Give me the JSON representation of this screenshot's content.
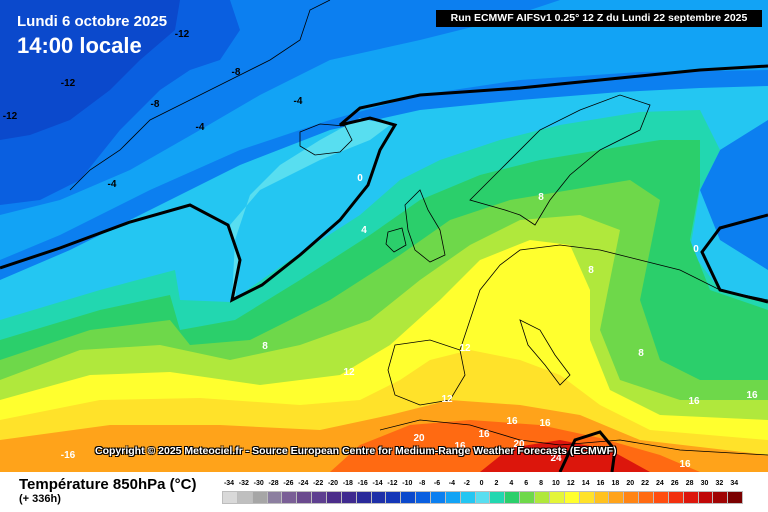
{
  "header": {
    "date": "Lundi 6 octobre 2025",
    "time": "14:00 locale",
    "run_info": "Run ECMWF AIFSv1 0.25° 12 Z du Lundi 22 septembre 2025"
  },
  "copyright": "Copyright © 2025 Meteociel.fr - Source European Centre for Medium-Range Weather Forecasts (ECMWF)",
  "legend": {
    "title": "Température 850hPa (°C)",
    "subtitle": "(+ 336h)",
    "steps": [
      {
        "value": "-34",
        "color": "#d9d9d9"
      },
      {
        "value": "-32",
        "color": "#bfbfbf"
      },
      {
        "value": "-30",
        "color": "#a6a6a6"
      },
      {
        "value": "-28",
        "color": "#8c7fa0"
      },
      {
        "value": "-26",
        "color": "#7a5f96"
      },
      {
        "value": "-24",
        "color": "#6a4a8e"
      },
      {
        "value": "-22",
        "color": "#5e3f90"
      },
      {
        "value": "-20",
        "color": "#4b2d8a"
      },
      {
        "value": "-18",
        "color": "#3f2a8f"
      },
      {
        "value": "-16",
        "color": "#2a2a9a"
      },
      {
        "value": "-14",
        "color": "#1e2fa8"
      },
      {
        "value": "-12",
        "color": "#1436b8"
      },
      {
        "value": "-10",
        "color": "#0b49cc"
      },
      {
        "value": "-8",
        "color": "#0a5fe0"
      },
      {
        "value": "-6",
        "color": "#0c7ff0"
      },
      {
        "value": "-4",
        "color": "#12a3f5"
      },
      {
        "value": "-2",
        "color": "#24c6f2"
      },
      {
        "value": "0",
        "color": "#58def0"
      },
      {
        "value": "2",
        "color": "#22d7b0"
      },
      {
        "value": "4",
        "color": "#2bcf6b"
      },
      {
        "value": "6",
        "color": "#6ed84a"
      },
      {
        "value": "8",
        "color": "#b0e83c"
      },
      {
        "value": "10",
        "color": "#e4f538"
      },
      {
        "value": "12",
        "color": "#ffff2e"
      },
      {
        "value": "14",
        "color": "#ffe22a"
      },
      {
        "value": "16",
        "color": "#ffc21f"
      },
      {
        "value": "18",
        "color": "#ffa31a"
      },
      {
        "value": "20",
        "color": "#ff8414"
      },
      {
        "value": "22",
        "color": "#ff6a12"
      },
      {
        "value": "24",
        "color": "#ff4d10"
      },
      {
        "value": "26",
        "color": "#f2300e"
      },
      {
        "value": "28",
        "color": "#dc160c"
      },
      {
        "value": "30",
        "color": "#c00808"
      },
      {
        "value": "32",
        "color": "#a00404"
      },
      {
        "value": "34",
        "color": "#7a0000"
      }
    ]
  },
  "isotherm_labels": [
    {
      "text": "-12",
      "color": "#000000"
    },
    {
      "text": "-12",
      "color": "#000000"
    },
    {
      "text": "-12",
      "color": "#000000"
    },
    {
      "text": "-8",
      "color": "#000000"
    },
    {
      "text": "-8",
      "color": "#000000"
    },
    {
      "text": "-4",
      "color": "#000000"
    },
    {
      "text": "-4",
      "color": "#000000"
    },
    {
      "text": "-4",
      "color": "#000000"
    },
    {
      "text": "0",
      "color": "#ffffff"
    },
    {
      "text": "0",
      "color": "#ffffff"
    },
    {
      "text": "4",
      "color": "#ffffff"
    },
    {
      "text": "8",
      "color": "#ffffff"
    },
    {
      "text": "8",
      "color": "#ffffff"
    },
    {
      "text": "8",
      "color": "#ffffff"
    },
    {
      "text": "8",
      "color": "#ffffff"
    },
    {
      "text": "12",
      "color": "#ffffff"
    },
    {
      "text": "12",
      "color": "#ffffff"
    },
    {
      "text": "12",
      "color": "#ffffff"
    },
    {
      "text": "16",
      "color": "#ffffff"
    },
    {
      "text": "16",
      "color": "#ffffff"
    },
    {
      "text": "16",
      "color": "#ffffff"
    },
    {
      "text": "16",
      "color": "#ffffff"
    },
    {
      "text": "16",
      "color": "#ffffff"
    },
    {
      "text": "16",
      "color": "#ffffff"
    },
    {
      "text": "16",
      "color": "#ffffff"
    },
    {
      "text": "20",
      "color": "#ffffff"
    },
    {
      "text": "20",
      "color": "#ffffff"
    },
    {
      "text": "24",
      "color": "#ffffff"
    },
    {
      "text": "-16",
      "color": "#ffffff"
    }
  ]
}
